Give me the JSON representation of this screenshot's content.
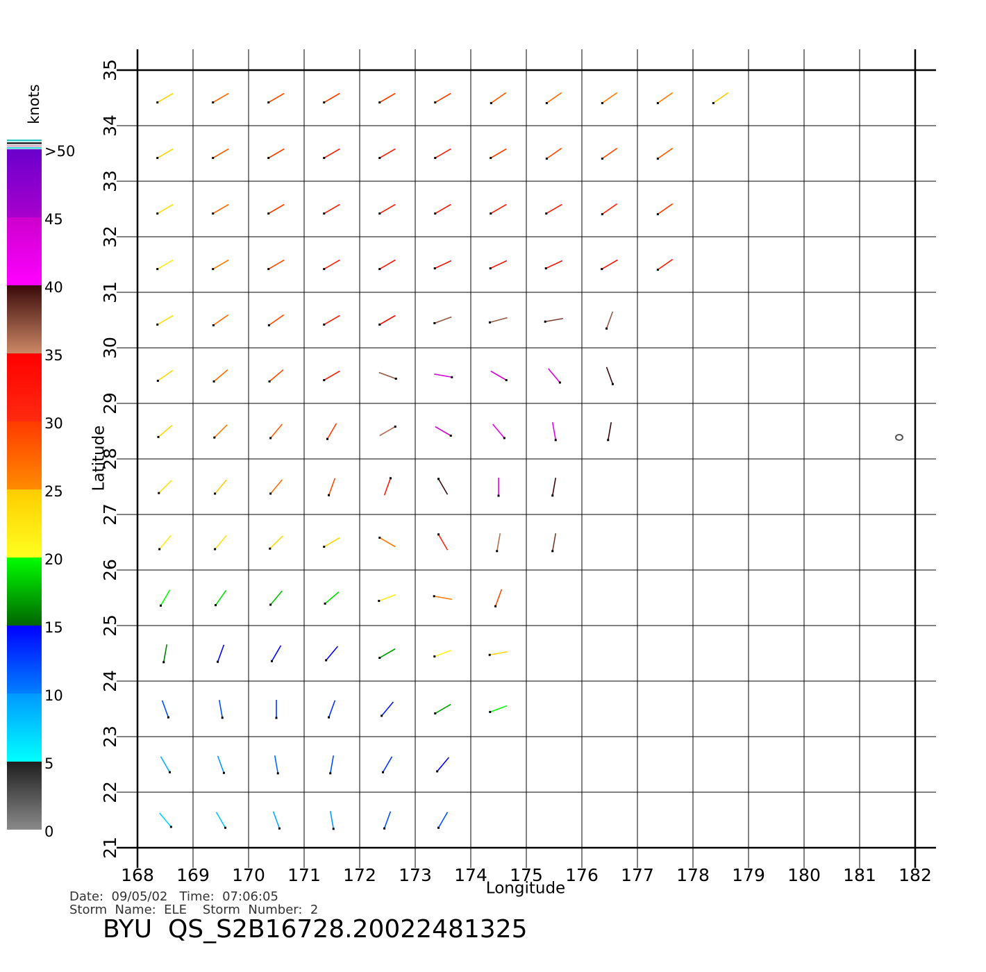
{
  "chart_data": {
    "type": "wind-vector",
    "xlabel": "Longitude",
    "ylabel": "Latitude",
    "xlim": [
      168,
      182
    ],
    "ylim": [
      21,
      35
    ],
    "xticks": [
      168,
      169,
      170,
      171,
      172,
      173,
      174,
      175,
      176,
      177,
      178,
      179,
      180,
      181,
      182
    ],
    "yticks": [
      21,
      22,
      23,
      24,
      25,
      26,
      27,
      28,
      29,
      30,
      31,
      32,
      33,
      34,
      35
    ],
    "grid": true,
    "colorbar": {
      "label": "knots",
      "lim": [
        0,
        50
      ],
      "ticks": [
        0,
        5,
        10,
        15,
        20,
        25,
        30,
        35,
        40,
        45,
        {
          "value": 50,
          "label": ">50"
        }
      ],
      "colors": [
        [
          "#8a8a8a",
          "#1e1e1e"
        ],
        [
          "#00ffff",
          "#0099ff"
        ],
        [
          "#0080ff",
          "#0000ff"
        ],
        [
          "#006400",
          "#00ff00"
        ],
        [
          "#ffff20",
          "#ffcc00"
        ],
        [
          "#ff8c00",
          "#ff3a00"
        ],
        [
          "#ff2a10",
          "#ff0000"
        ],
        [
          "#cc8866",
          "#3a0a0a"
        ],
        [
          "#ff00ff",
          "#cc00cc"
        ],
        [
          "#a800cc",
          "#6a00cc"
        ]
      ]
    },
    "vectors": {
      "lon": [
        168.5,
        169.5,
        170.5,
        171.5,
        172.5,
        173.5,
        168.5,
        169.5,
        170.5,
        171.5,
        172.5,
        173.5,
        168.5,
        169.5,
        170.5,
        171.5,
        172.5,
        173.5,
        174.5,
        168.5,
        169.5,
        170.5,
        171.5,
        172.5,
        173.5,
        174.5,
        168.5,
        169.5,
        170.5,
        171.5,
        172.5,
        173.5,
        174.5,
        168.5,
        169.5,
        170.5,
        171.5,
        172.5,
        173.5,
        174.5,
        175.5,
        168.5,
        169.5,
        170.5,
        171.5,
        172.5,
        173.5,
        174.5,
        175.5,
        168.5,
        169.5,
        170.5,
        171.5,
        172.5,
        173.5,
        174.5,
        175.5,
        176.5,
        168.5,
        169.5,
        170.5,
        171.5,
        172.5,
        173.5,
        174.5,
        175.5,
        176.5,
        168.5,
        169.5,
        170.5,
        171.5,
        172.5,
        173.5,
        174.5,
        175.5,
        176.5,
        168.5,
        169.5,
        170.5,
        171.5,
        172.5,
        173.5,
        174.5,
        175.5,
        176.5,
        177.5,
        168.5,
        169.5,
        170.5,
        171.5,
        172.5,
        173.5,
        174.5,
        175.5,
        176.5,
        177.5,
        168.5,
        169.5,
        170.5,
        171.5,
        172.5,
        173.5,
        174.5,
        175.5,
        176.5,
        177.5,
        168.5,
        169.5,
        170.5,
        171.5,
        172.5,
        173.5,
        174.5,
        175.5,
        176.5,
        177.5,
        178.5
      ],
      "lat": [
        21.5,
        21.5,
        21.5,
        21.5,
        21.5,
        21.5,
        22.5,
        22.5,
        22.5,
        22.5,
        22.5,
        22.5,
        23.5,
        23.5,
        23.5,
        23.5,
        23.5,
        23.5,
        23.5,
        24.5,
        24.5,
        24.5,
        24.5,
        24.5,
        24.5,
        24.5,
        25.5,
        25.5,
        25.5,
        25.5,
        25.5,
        25.5,
        25.5,
        26.5,
        26.5,
        26.5,
        26.5,
        26.5,
        26.5,
        26.5,
        26.5,
        27.5,
        27.5,
        27.5,
        27.5,
        27.5,
        27.5,
        27.5,
        27.5,
        28.5,
        28.5,
        28.5,
        28.5,
        28.5,
        28.5,
        28.5,
        28.5,
        28.5,
        29.5,
        29.5,
        29.5,
        29.5,
        29.5,
        29.5,
        29.5,
        29.5,
        29.5,
        30.5,
        30.5,
        30.5,
        30.5,
        30.5,
        30.5,
        30.5,
        30.5,
        30.5,
        31.5,
        31.5,
        31.5,
        31.5,
        31.5,
        31.5,
        31.5,
        31.5,
        31.5,
        31.5,
        32.5,
        32.5,
        32.5,
        32.5,
        32.5,
        32.5,
        32.5,
        32.5,
        32.5,
        32.5,
        33.5,
        33.5,
        33.5,
        33.5,
        33.5,
        33.5,
        33.5,
        33.5,
        33.5,
        33.5,
        34.5,
        34.5,
        34.5,
        34.5,
        34.5,
        34.5,
        34.5,
        34.5,
        34.5,
        34.5,
        34.5
      ],
      "speed": [
        7,
        8,
        9,
        10,
        12,
        12,
        9,
        10,
        11,
        12,
        13,
        15,
        12,
        12,
        13,
        13,
        14,
        17,
        20,
        16,
        15,
        15,
        15,
        17,
        21,
        24,
        20,
        19,
        18,
        19,
        22,
        26,
        29,
        22,
        23,
        24,
        24,
        26,
        31,
        36,
        38,
        23,
        25,
        27,
        29,
        32,
        40,
        43,
        40,
        24,
        26,
        28,
        30,
        36,
        44,
        42,
        42,
        40,
        24,
        27,
        29,
        31,
        37,
        44,
        44,
        43,
        40,
        23,
        27,
        29,
        31,
        34,
        37,
        37,
        38,
        37,
        22,
        26,
        29,
        31,
        32,
        33,
        33,
        33,
        33,
        32,
        23,
        27,
        30,
        31,
        31,
        32,
        31,
        31,
        31,
        30,
        24,
        28,
        30,
        31,
        31,
        31,
        30,
        29,
        29,
        28,
        24,
        27,
        29,
        30,
        30,
        30,
        28,
        27,
        26,
        26,
        25
      ],
      "dir": [
        320,
        330,
        340,
        350,
        20,
        30,
        330,
        340,
        350,
        10,
        30,
        40,
        340,
        350,
        0,
        20,
        40,
        60,
        70,
        10,
        20,
        30,
        40,
        60,
        70,
        80,
        30,
        35,
        40,
        50,
        70,
        100,
        20,
        40,
        40,
        45,
        60,
        120,
        150,
        10,
        10,
        45,
        40,
        40,
        20,
        200,
        150,
        0,
        10,
        50,
        45,
        40,
        30,
        240,
        300,
        320,
        350,
        10,
        55,
        50,
        50,
        60,
        290,
        280,
        300,
        320,
        340,
        60,
        55,
        55,
        60,
        60,
        70,
        75,
        80,
        20,
        60,
        60,
        60,
        60,
        60,
        65,
        65,
        65,
        60,
        55,
        60,
        60,
        60,
        60,
        60,
        60,
        60,
        60,
        55,
        55,
        60,
        60,
        60,
        60,
        60,
        60,
        60,
        55,
        55,
        55,
        60,
        60,
        60,
        60,
        60,
        60,
        55,
        55,
        55,
        55,
        55
      ]
    }
  },
  "footer": {
    "date_line": "Date:  09/05/02   Time:  07:06:05",
    "storm_line": "Storm  Name:  ELE    Storm  Number:  2",
    "file": "BYU  QS_S2B16728.20022481325"
  }
}
